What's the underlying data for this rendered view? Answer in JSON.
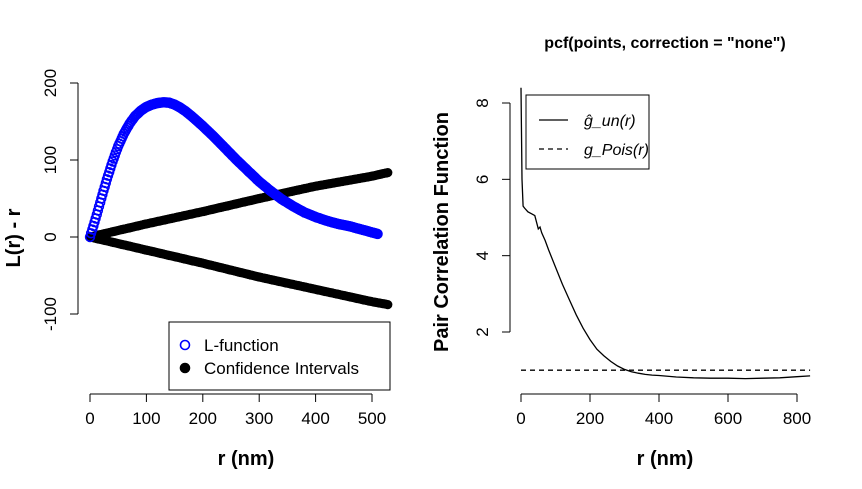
{
  "chart_data": [
    {
      "type": "scatter",
      "title": "",
      "xlabel": "r (nm)",
      "ylabel": "L(r) - r",
      "xlim": [
        -18,
        530
      ],
      "ylim": [
        -200,
        200
      ],
      "xticks": [
        "0",
        "100",
        "200",
        "300",
        "400",
        "500"
      ],
      "yticks": [
        "-100",
        "0",
        "100",
        "200"
      ],
      "legend": {
        "position": "bottom-right",
        "entries": [
          "L-function",
          "Confidence Intervals"
        ]
      },
      "series": [
        {
          "name": "L-function",
          "color": "#0000ff",
          "points": [
            [
              0,
              0
            ],
            [
              5,
              12
            ],
            [
              10,
              24
            ],
            [
              20,
              50
            ],
            [
              30,
              75
            ],
            [
              40,
              98
            ],
            [
              50,
              118
            ],
            [
              60,
              134
            ],
            [
              70,
              147
            ],
            [
              80,
              157
            ],
            [
              90,
              164
            ],
            [
              100,
              169
            ],
            [
              110,
              172
            ],
            [
              120,
              174
            ],
            [
              130,
              175
            ],
            [
              140,
              174.5
            ],
            [
              150,
              172
            ],
            [
              160,
              168
            ],
            [
              170,
              163
            ],
            [
              180,
              157
            ],
            [
              200,
              144
            ],
            [
              220,
              130
            ],
            [
              240,
              115
            ],
            [
              260,
              100
            ],
            [
              280,
              86
            ],
            [
              300,
              72
            ],
            [
              320,
              60
            ],
            [
              340,
              49
            ],
            [
              360,
              40
            ],
            [
              380,
              32
            ],
            [
              400,
              26
            ],
            [
              420,
              21
            ],
            [
              440,
              17
            ],
            [
              460,
              14
            ],
            [
              480,
              10
            ],
            [
              500,
              6
            ],
            [
              510,
              4
            ]
          ]
        },
        {
          "name": "Confidence Intervals",
          "color": "#000000",
          "upper_points": [
            [
              0,
              0
            ],
            [
              100,
              17
            ],
            [
              200,
              33
            ],
            [
              300,
              50
            ],
            [
              400,
              66
            ],
            [
              500,
              79
            ],
            [
              530,
              84
            ]
          ],
          "lower_points": [
            [
              0,
              0
            ],
            [
              100,
              -17
            ],
            [
              200,
              -34
            ],
            [
              300,
              -52
            ],
            [
              400,
              -68
            ],
            [
              500,
              -84
            ],
            [
              530,
              -88
            ]
          ]
        }
      ]
    },
    {
      "type": "line",
      "title": "pcf(points, correction = \"none\")",
      "xlabel": "r (nm)",
      "ylabel": "Pair Correlation Function",
      "xlim": [
        0,
        838
      ],
      "ylim": [
        0.5,
        8.3
      ],
      "xticks": [
        "0",
        "200",
        "400",
        "600",
        "800"
      ],
      "yticks": [
        "2",
        "4",
        "6",
        "8"
      ],
      "legend": {
        "position": "top-left",
        "entries": [
          "ĝ_un(r)",
          "g_Pois(r)"
        ]
      },
      "series": [
        {
          "name": "ĝ_un(r)",
          "style": "solid",
          "x": [
            0,
            3,
            6,
            10,
            20,
            30,
            40,
            50,
            55,
            60,
            70,
            80,
            100,
            120,
            140,
            160,
            180,
            200,
            220,
            240,
            260,
            280,
            300,
            320,
            340,
            360,
            380,
            400,
            450,
            500,
            550,
            600,
            650,
            700,
            750,
            800,
            838
          ],
          "y": [
            8.4,
            6.0,
            5.3,
            5.25,
            5.15,
            5.1,
            5.05,
            4.7,
            4.75,
            4.6,
            4.4,
            4.15,
            3.7,
            3.25,
            2.85,
            2.45,
            2.1,
            1.8,
            1.55,
            1.38,
            1.23,
            1.11,
            1.02,
            0.96,
            0.92,
            0.89,
            0.87,
            0.86,
            0.82,
            0.8,
            0.79,
            0.79,
            0.78,
            0.79,
            0.8,
            0.83,
            0.85
          ]
        },
        {
          "name": "g_Pois(r)",
          "style": "dashed",
          "x": [
            0,
            838
          ],
          "y": [
            1,
            1
          ]
        }
      ]
    }
  ]
}
